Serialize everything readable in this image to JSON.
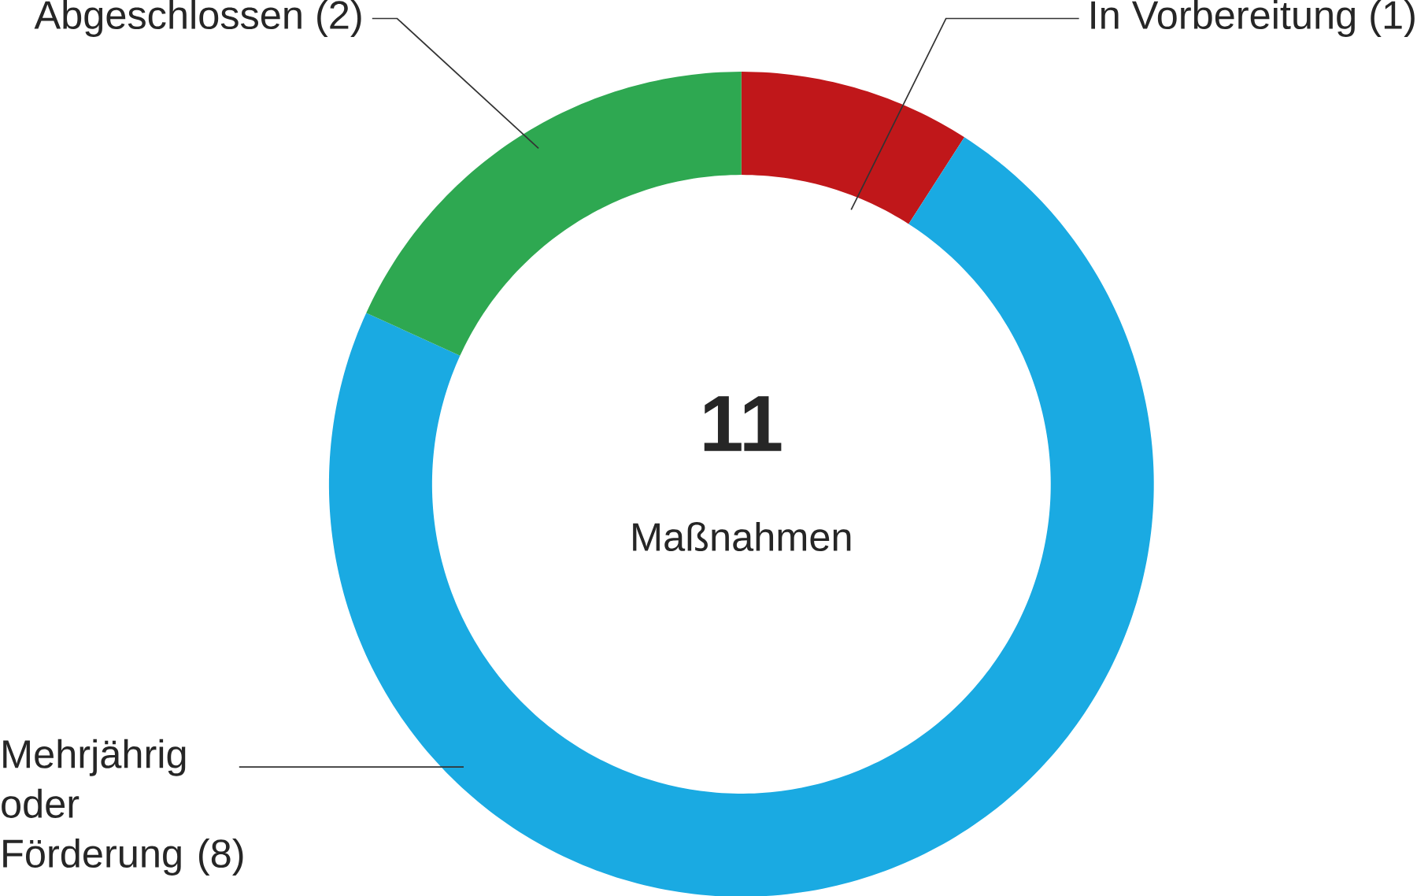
{
  "chart_data": {
    "type": "donut",
    "categories": [
      "In Vorbereitung (1)",
      "Mehrjährig oder Förderung (8)",
      "Abgeschlossen (2)"
    ],
    "values": [
      1,
      8,
      2
    ],
    "colors": [
      "#c0171a",
      "#1aaae2",
      "#2ea851"
    ],
    "annotations": [
      "11",
      "Maßnahmen"
    ]
  }
}
